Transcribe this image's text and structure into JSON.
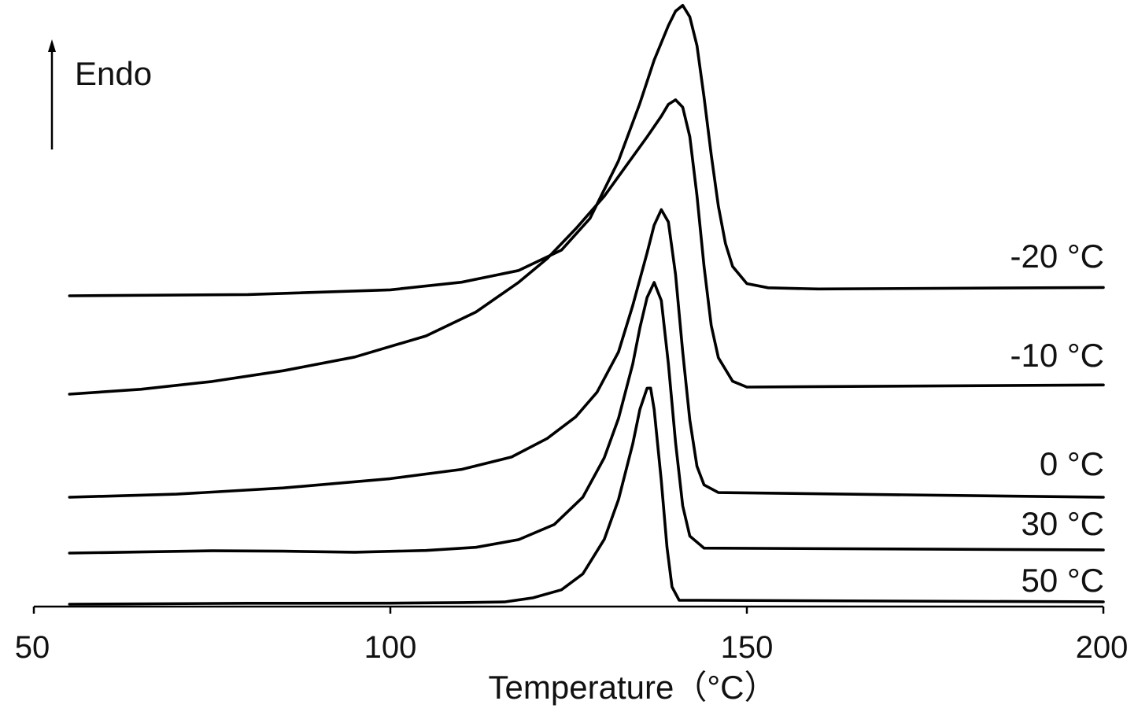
{
  "chart_data": {
    "type": "line",
    "xlabel": "Temperature（°C）",
    "ylabel": "",
    "xlim": [
      50,
      200
    ],
    "xticks": [
      "50",
      "100",
      "150",
      "200"
    ],
    "y_axis_shown": false,
    "grid": false,
    "endo_indicator": {
      "label": "Endo",
      "direction": "up"
    },
    "series": [
      {
        "name": "-20 °C",
        "points": [
          [
            55,
            0
          ],
          [
            80,
            0.001
          ],
          [
            100,
            0.015
          ],
          [
            110,
            0.04
          ],
          [
            118,
            0.08
          ],
          [
            124,
            0.15
          ],
          [
            128,
            0.26
          ],
          [
            132,
            0.46
          ],
          [
            135,
            0.66
          ],
          [
            137,
            0.81
          ],
          [
            139,
            0.93
          ],
          [
            140,
            0.98
          ],
          [
            141,
            1.0
          ],
          [
            142,
            0.96
          ],
          [
            143,
            0.86
          ],
          [
            144,
            0.68
          ],
          [
            145,
            0.48
          ],
          [
            146,
            0.3
          ],
          [
            147,
            0.17
          ],
          [
            148,
            0.09
          ],
          [
            150,
            0.03
          ],
          [
            153,
            0.015
          ],
          [
            160,
            0.01
          ],
          [
            200,
            0.01
          ]
        ]
      },
      {
        "name": "-10 °C",
        "points": [
          [
            55,
            0
          ],
          [
            65,
            0.015
          ],
          [
            75,
            0.04
          ],
          [
            85,
            0.075
          ],
          [
            95,
            0.12
          ],
          [
            105,
            0.19
          ],
          [
            112,
            0.27
          ],
          [
            118,
            0.37
          ],
          [
            122,
            0.45
          ],
          [
            126,
            0.55
          ],
          [
            130,
            0.66
          ],
          [
            133,
            0.76
          ],
          [
            136,
            0.86
          ],
          [
            138,
            0.93
          ],
          [
            139,
            0.97
          ],
          [
            140,
            0.985
          ],
          [
            141,
            0.96
          ],
          [
            142,
            0.86
          ],
          [
            143,
            0.66
          ],
          [
            144,
            0.42
          ],
          [
            145,
            0.22
          ],
          [
            146,
            0.11
          ],
          [
            148,
            0.03
          ],
          [
            150,
            0.01
          ],
          [
            200,
            0.01
          ]
        ]
      },
      {
        "name": "0 °C",
        "points": [
          [
            55,
            0
          ],
          [
            70,
            0.01
          ],
          [
            85,
            0.03
          ],
          [
            100,
            0.06
          ],
          [
            110,
            0.09
          ],
          [
            117,
            0.13
          ],
          [
            122,
            0.19
          ],
          [
            126,
            0.26
          ],
          [
            129,
            0.34
          ],
          [
            132,
            0.47
          ],
          [
            134,
            0.62
          ],
          [
            136,
            0.79
          ],
          [
            137,
            0.88
          ],
          [
            138,
            0.93
          ],
          [
            139,
            0.89
          ],
          [
            140,
            0.72
          ],
          [
            141,
            0.47
          ],
          [
            142,
            0.25
          ],
          [
            143,
            0.1
          ],
          [
            144,
            0.04
          ],
          [
            146,
            0.015
          ],
          [
            200,
            0
          ]
        ]
      },
      {
        "name": "30 °C",
        "points": [
          [
            55,
            0
          ],
          [
            65,
            0.003
          ],
          [
            75,
            0.006
          ],
          [
            85,
            0.004
          ],
          [
            95,
            0.0
          ],
          [
            105,
            0.005
          ],
          [
            112,
            0.015
          ],
          [
            118,
            0.04
          ],
          [
            123,
            0.09
          ],
          [
            127,
            0.18
          ],
          [
            130,
            0.31
          ],
          [
            132,
            0.44
          ],
          [
            134,
            0.62
          ],
          [
            135,
            0.74
          ],
          [
            136,
            0.84
          ],
          [
            137,
            0.89
          ],
          [
            138,
            0.83
          ],
          [
            139,
            0.62
          ],
          [
            140,
            0.36
          ],
          [
            141,
            0.15
          ],
          [
            142,
            0.05
          ],
          [
            144,
            0.01
          ],
          [
            200,
            0
          ]
        ]
      },
      {
        "name": "50 °C",
        "points": [
          [
            55,
            0
          ],
          [
            80,
            0.002
          ],
          [
            100,
            0.001
          ],
          [
            110,
            0.003
          ],
          [
            116,
            0.005
          ],
          [
            120,
            0.02
          ],
          [
            124,
            0.05
          ],
          [
            127,
            0.11
          ],
          [
            130,
            0.24
          ],
          [
            132,
            0.39
          ],
          [
            134,
            0.6
          ],
          [
            135,
            0.73
          ],
          [
            136,
            0.81
          ],
          [
            136.5,
            0.81
          ],
          [
            137,
            0.73
          ],
          [
            138,
            0.46
          ],
          [
            138.8,
            0.21
          ],
          [
            139.5,
            0.06
          ],
          [
            140.5,
            0.01
          ],
          [
            200,
            0
          ]
        ]
      }
    ]
  }
}
